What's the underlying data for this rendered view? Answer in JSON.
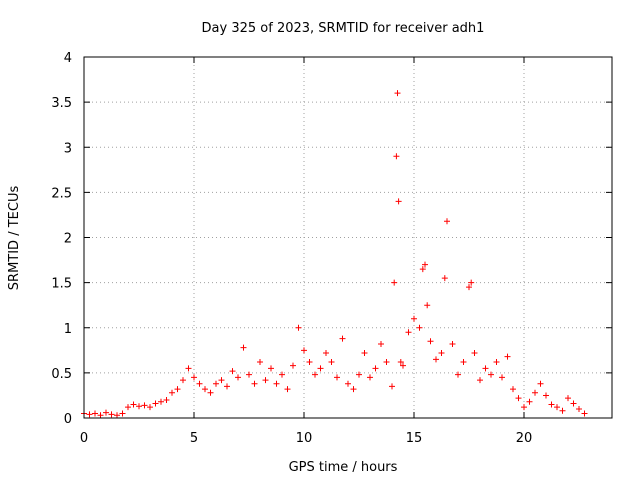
{
  "chart_data": {
    "type": "scatter",
    "title": "Day 325 of 2023, SRMTID for receiver adh1",
    "xlabel": "GPS time / hours",
    "ylabel": "SRMTID / TECUs",
    "xlim": [
      0,
      24
    ],
    "ylim": [
      0,
      4
    ],
    "grid": true,
    "marker": "+",
    "color": "#ff0000",
    "xticks": [
      0,
      5,
      10,
      15,
      20
    ],
    "xtick_labels": [
      "0",
      "5",
      "10",
      "15",
      "20"
    ],
    "yticks": [
      0,
      0.5,
      1,
      1.5,
      2,
      2.5,
      3,
      3.5,
      4
    ],
    "ytick_labels": [
      "0",
      "0.5",
      "1",
      "1.5",
      "2",
      "2.5",
      "3",
      "3.5",
      "4"
    ],
    "series": [
      {
        "name": "adh1",
        "x": [
          0.0,
          0.25,
          0.5,
          0.75,
          1.0,
          1.25,
          1.5,
          1.75,
          2.0,
          2.25,
          2.5,
          2.75,
          3.0,
          3.25,
          3.5,
          3.75,
          4.0,
          4.25,
          4.5,
          4.75,
          5.0,
          5.25,
          5.5,
          5.75,
          6.0,
          6.25,
          6.5,
          6.75,
          7.0,
          7.25,
          7.5,
          7.75,
          8.0,
          8.25,
          8.5,
          8.75,
          9.0,
          9.25,
          9.5,
          9.75,
          10.0,
          10.25,
          10.5,
          10.75,
          11.0,
          11.25,
          11.5,
          11.75,
          12.0,
          12.25,
          12.5,
          12.75,
          13.0,
          13.25,
          13.5,
          13.75,
          14.0,
          14.1,
          14.2,
          14.25,
          14.3,
          14.4,
          14.5,
          14.75,
          15.0,
          15.25,
          15.4,
          15.5,
          15.6,
          15.75,
          16.0,
          16.25,
          16.4,
          16.5,
          16.75,
          17.0,
          17.25,
          17.5,
          17.6,
          17.75,
          18.0,
          18.25,
          18.5,
          18.75,
          19.0,
          19.25,
          19.5,
          19.75,
          20.0,
          20.25,
          20.5,
          20.75,
          21.0,
          21.25,
          21.5,
          21.75,
          22.0,
          22.25,
          22.5,
          22.75
        ],
        "y": [
          0.05,
          0.04,
          0.05,
          0.03,
          0.06,
          0.04,
          0.03,
          0.05,
          0.12,
          0.15,
          0.13,
          0.14,
          0.12,
          0.16,
          0.18,
          0.2,
          0.28,
          0.32,
          0.42,
          0.55,
          0.45,
          0.38,
          0.32,
          0.28,
          0.38,
          0.42,
          0.35,
          0.52,
          0.45,
          0.78,
          0.48,
          0.38,
          0.62,
          0.42,
          0.55,
          0.38,
          0.48,
          0.32,
          0.58,
          1.0,
          0.75,
          0.62,
          0.48,
          0.55,
          0.72,
          0.62,
          0.45,
          0.88,
          0.38,
          0.32,
          0.48,
          0.72,
          0.45,
          0.55,
          0.82,
          0.62,
          0.35,
          1.5,
          2.9,
          3.6,
          2.4,
          0.62,
          0.58,
          0.95,
          1.1,
          1.0,
          1.65,
          1.7,
          1.25,
          0.85,
          0.65,
          0.72,
          1.55,
          2.18,
          0.82,
          0.48,
          0.62,
          1.45,
          1.5,
          0.72,
          0.42,
          0.55,
          0.48,
          0.62,
          0.45,
          0.68,
          0.32,
          0.22,
          0.12,
          0.18,
          0.28,
          0.38,
          0.25,
          0.15,
          0.12,
          0.08,
          0.22,
          0.16,
          0.1,
          0.05
        ]
      }
    ]
  }
}
